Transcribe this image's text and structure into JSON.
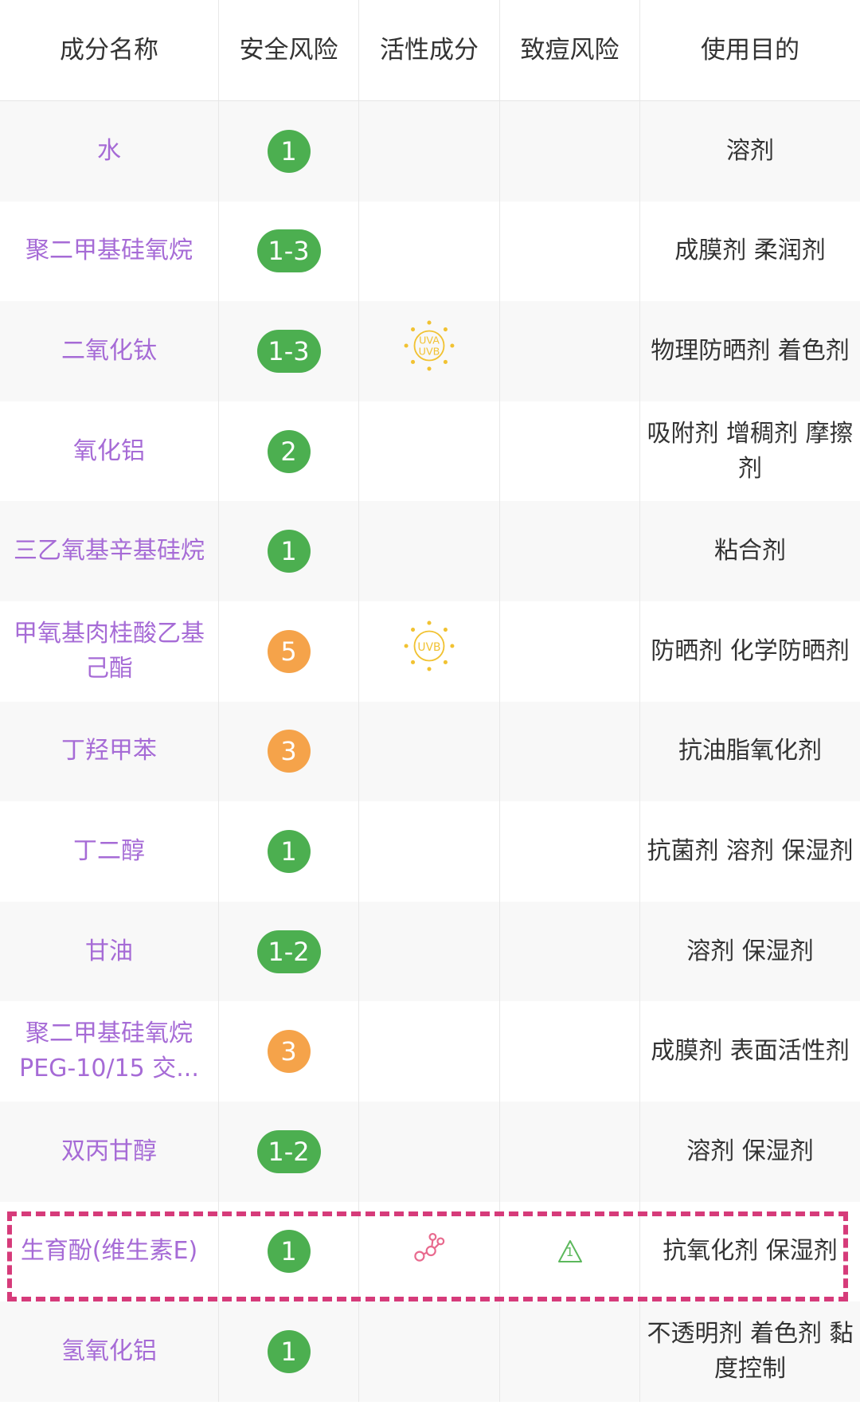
{
  "colors": {
    "green": "#4caf50",
    "orange": "#f5a34a",
    "name": "#a66bd6",
    "highlight": "#d63b7a",
    "sun": "#f1c232"
  },
  "headers": [
    "成分名称",
    "安全风险",
    "活性成分",
    "致痘风险",
    "使用目的"
  ],
  "rows": [
    {
      "name": "水",
      "risk": "1",
      "level": "green",
      "active": "",
      "acne": "",
      "purpose": "溶剂"
    },
    {
      "name": "聚二甲基硅氧烷",
      "risk": "1-3",
      "level": "green",
      "active": "",
      "acne": "",
      "purpose": "成膜剂 柔润剂"
    },
    {
      "name": "二氧化钛",
      "risk": "1-3",
      "level": "green",
      "active": "uva-uvb-sun-icon",
      "acne": "",
      "purpose": "物理防晒剂 着色剂"
    },
    {
      "name": "氧化铝",
      "risk": "2",
      "level": "green",
      "active": "",
      "acne": "",
      "purpose": "吸附剂 增稠剂 摩擦剂"
    },
    {
      "name": "三乙氧基辛基硅烷",
      "risk": "1",
      "level": "green",
      "active": "",
      "acne": "",
      "purpose": "粘合剂"
    },
    {
      "name": "甲氧基肉桂酸乙基己酯",
      "risk": "5",
      "level": "orange",
      "active": "uvb-sun-icon",
      "acne": "",
      "purpose": "防晒剂 化学防晒剂"
    },
    {
      "name": "丁羟甲苯",
      "risk": "3",
      "level": "orange",
      "active": "",
      "acne": "",
      "purpose": "抗油脂氧化剂"
    },
    {
      "name": "丁二醇",
      "risk": "1",
      "level": "green",
      "active": "",
      "acne": "",
      "purpose": "抗菌剂 溶剂 保湿剂"
    },
    {
      "name": "甘油",
      "risk": "1-2",
      "level": "green",
      "active": "",
      "acne": "",
      "purpose": "溶剂 保湿剂"
    },
    {
      "name": "聚二甲基硅氧烷PEG-10/15 交...",
      "risk": "3",
      "level": "orange",
      "active": "",
      "acne": "",
      "purpose": "成膜剂 表面活性剂"
    },
    {
      "name": "双丙甘醇",
      "risk": "1-2",
      "level": "green",
      "active": "",
      "acne": "",
      "purpose": "溶剂 保湿剂"
    },
    {
      "name": "生育酚(维生素E)",
      "risk": "1",
      "level": "green",
      "active": "molecule-icon",
      "acne": "acne-warning-icon",
      "acne_value": "1",
      "purpose": "抗氧化剂 保湿剂",
      "highlighted": true
    },
    {
      "name": "氢氧化铝",
      "risk": "1",
      "level": "green",
      "active": "",
      "acne": "",
      "purpose": "不透明剂 着色剂 黏度控制"
    }
  ],
  "sun_labels": {
    "uva": "UVA",
    "uvb": "UVB"
  }
}
